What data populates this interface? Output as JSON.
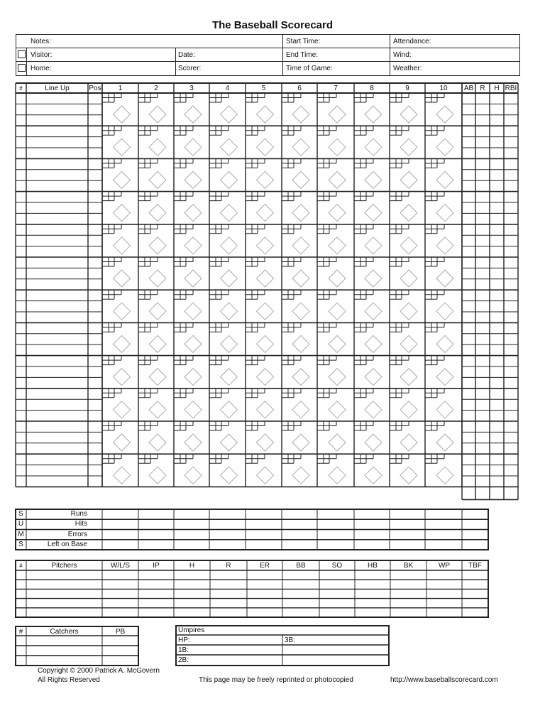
{
  "title": "The Baseball Scorecard",
  "game_info": {
    "notes": "Notes:",
    "visitor": "Visitor:",
    "home": "Home:",
    "date": "Date:",
    "scorer": "Scorer:",
    "start_time": "Start Time:",
    "end_time": "End Time:",
    "time_of_game": "Time of Game:",
    "attendance": "Attendance:",
    "wind": "Wind:",
    "weather": "Weather:"
  },
  "lineup": {
    "headers": {
      "num": "#",
      "name": "Line Up",
      "pos": "Pos"
    },
    "innings": [
      "1",
      "2",
      "3",
      "4",
      "5",
      "6",
      "7",
      "8",
      "9",
      "10"
    ],
    "stats": [
      "AB",
      "R",
      "H",
      "RBI"
    ]
  },
  "sums": {
    "letters": [
      "S",
      "U",
      "M",
      "S"
    ],
    "rows": [
      "Runs",
      "Hits",
      "Errors",
      "Left on Base"
    ]
  },
  "pitchers": {
    "headers": [
      "#",
      "Pitchers",
      "W/L/S",
      "IP",
      "H",
      "R",
      "ER",
      "BB",
      "SO",
      "HB",
      "BK",
      "WP",
      "TBF"
    ]
  },
  "catchers": {
    "headers": [
      "#",
      "Catchers",
      "PB"
    ]
  },
  "umpires": {
    "title": "Umpires",
    "hp": "HP:",
    "third": "3B:",
    "first": "1B:",
    "second": "2B:"
  },
  "footer": {
    "copyright": "Copyright © 2000 Patrick A. McGovern",
    "rights": "All Rights Reserved",
    "reprint": "This page may be freely reprinted or photocopied",
    "url": "http://www.baseballscorecard.com"
  }
}
